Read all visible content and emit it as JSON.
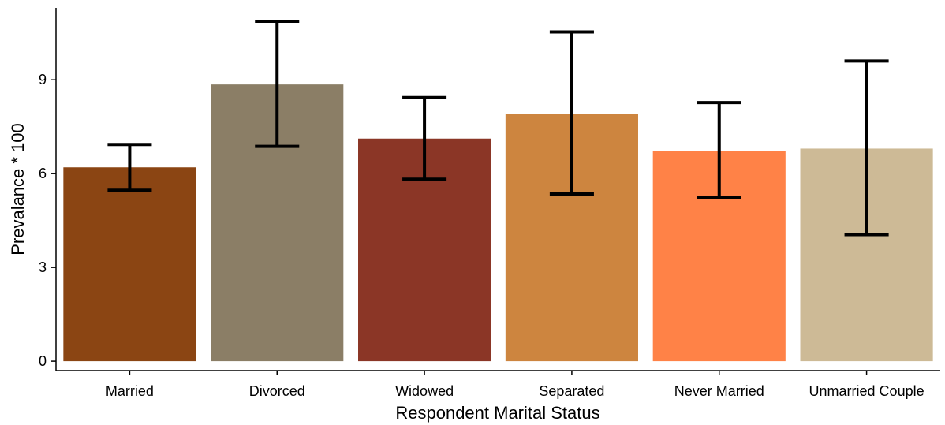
{
  "chart_data": {
    "type": "bar",
    "xlabel": "Respondent Marital Status",
    "ylabel": "Prevalance * 100",
    "categories": [
      "Married",
      "Divorced",
      "Widowed",
      "Separated",
      "Never Married",
      "Unmarried Couple"
    ],
    "values": [
      6.2,
      8.85,
      7.12,
      7.92,
      6.73,
      6.8
    ],
    "error_low": [
      5.47,
      6.87,
      5.82,
      5.35,
      5.23,
      4.05
    ],
    "error_high": [
      6.93,
      10.87,
      8.43,
      10.53,
      8.27,
      9.6
    ],
    "colors": [
      "#8B4513",
      "#8B7E66",
      "#8B3626",
      "#CD853F",
      "#FF8247",
      "#CDBA96"
    ],
    "yticks": [
      0,
      3,
      6,
      9
    ],
    "ylim": [
      -0.3,
      11.3
    ],
    "grid": false,
    "legend": "none"
  }
}
